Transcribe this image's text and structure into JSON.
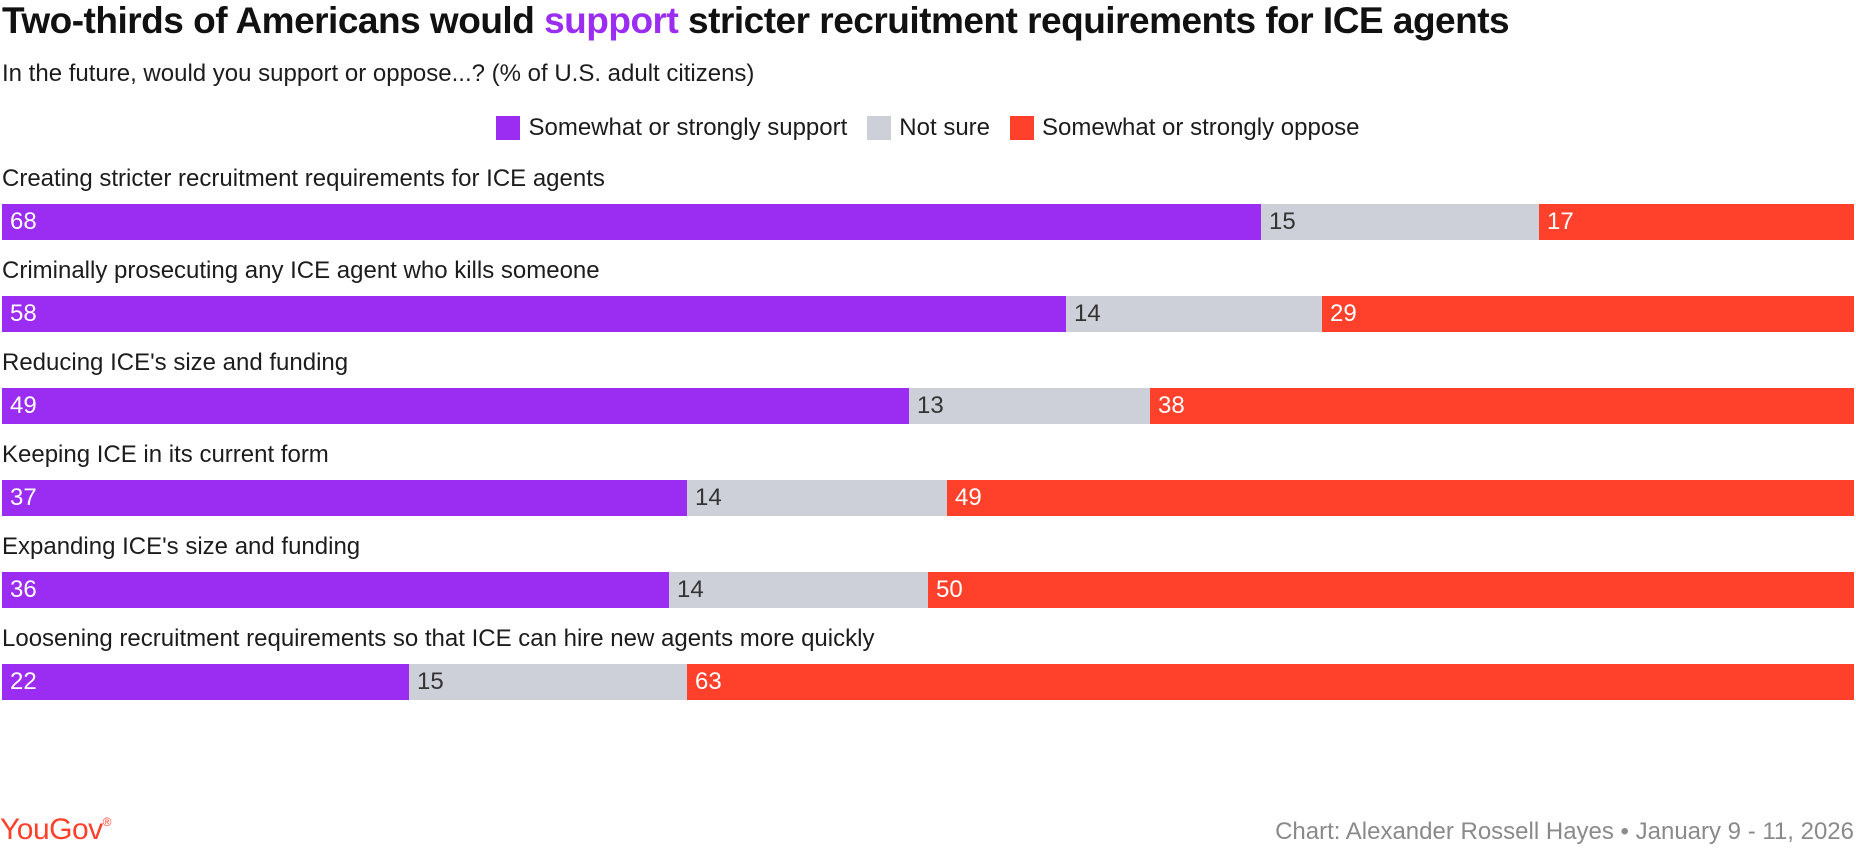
{
  "title_parts": {
    "before": "Two-thirds of Americans would ",
    "highlight": "support",
    "after": " stricter recruitment requirements for ICE agents"
  },
  "subtitle": "In the future, would you support or oppose...? (% of U.S. adult citizens)",
  "colors": {
    "support": "#9b2cf2",
    "not_sure": "#cdd0d9",
    "oppose": "#ff412c"
  },
  "legend": [
    {
      "key": "support",
      "label": "Somewhat or strongly support"
    },
    {
      "key": "not_sure",
      "label": "Not sure"
    },
    {
      "key": "oppose",
      "label": "Somewhat or strongly oppose"
    }
  ],
  "chart_data": {
    "type": "bar",
    "orientation": "horizontal",
    "stacked": true,
    "categories": [
      "Creating stricter recruitment requirements for ICE agents",
      "Criminally prosecuting any ICE agent who kills someone",
      "Reducing ICE's size and funding",
      "Keeping ICE in its current form",
      "Expanding ICE's size and funding",
      "Loosening recruitment requirements so that ICE can hire new agents more quickly"
    ],
    "series": [
      {
        "name": "Somewhat or strongly support",
        "values": [
          68,
          58,
          49,
          37,
          36,
          22
        ]
      },
      {
        "name": "Not sure",
        "values": [
          15,
          14,
          13,
          14,
          14,
          15
        ]
      },
      {
        "name": "Somewhat or strongly oppose",
        "values": [
          17,
          29,
          38,
          49,
          50,
          63
        ]
      }
    ],
    "legend_position": "top-center",
    "grid": false
  },
  "footer": {
    "logo_text": "YouGov",
    "logo_mark": "®",
    "credit": "Chart: Alexander Rossell Hayes • January 9 - 11, 2026"
  }
}
